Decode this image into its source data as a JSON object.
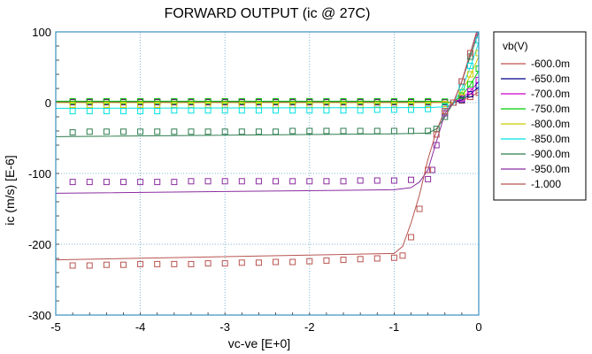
{
  "chart_data": {
    "type": "line",
    "title": "FORWARD OUTPUT (ic @ 27C)",
    "xlabel": "vc-ve  [E+0]",
    "ylabel": "ic (m/s)  [E-6]",
    "xlim": [
      -5,
      0
    ],
    "ylim": [
      -300,
      100
    ],
    "xticks": [
      "-5",
      "-4",
      "-3",
      "-2",
      "-1",
      "0"
    ],
    "yticks": [
      "-300",
      "-200",
      "-100",
      "0",
      "100"
    ],
    "grid": true,
    "legend_placement": "right",
    "legend_title": "vb(V)",
    "series": [
      {
        "name": "-600.0m",
        "color": "#c0504d",
        "x": [
          -5,
          -1.0,
          -0.6,
          -0.4,
          -0.3,
          -0.2,
          -0.1,
          0
        ],
        "y": [
          0.5,
          0.5,
          0.5,
          0.3,
          0.0,
          3,
          8,
          15
        ]
      },
      {
        "name": "-650.0m",
        "color": "#00008b",
        "x": [
          -5,
          -1.0,
          -0.6,
          -0.4,
          -0.3,
          -0.2,
          -0.1,
          0
        ],
        "y": [
          1,
          1,
          1,
          0.6,
          0.0,
          4,
          12,
          22
        ]
      },
      {
        "name": "-700.0m",
        "color": "#cc00cc",
        "x": [
          -5,
          -1.0,
          -0.6,
          -0.4,
          -0.3,
          -0.2,
          -0.1,
          0
        ],
        "y": [
          1.5,
          1.5,
          1.5,
          1,
          0.0,
          6,
          16,
          30
        ]
      },
      {
        "name": "-750.0m",
        "color": "#00cc00",
        "x": [
          -5,
          -1.0,
          -0.6,
          -0.4,
          -0.3,
          -0.2,
          -0.1,
          0
        ],
        "y": [
          2,
          2,
          2,
          1.5,
          0.0,
          10,
          25,
          45
        ]
      },
      {
        "name": "-800.0m",
        "color": "#cccc00",
        "x": [
          -5,
          -1.0,
          -0.6,
          -0.4,
          -0.3,
          -0.2,
          -0.1,
          0
        ],
        "y": [
          0,
          0,
          0,
          0,
          0.0,
          15,
          38,
          65
        ]
      },
      {
        "name": "-850.0m",
        "color": "#00e0e0",
        "x": [
          -5,
          -1.0,
          -0.6,
          -0.4,
          -0.3,
          -0.2,
          -0.1,
          0
        ],
        "y": [
          -8,
          -7,
          -7,
          -6,
          -2,
          20,
          50,
          85
        ]
      },
      {
        "name": "-900.0m",
        "color": "#2e7d4f",
        "x": [
          -5,
          -1.0,
          -0.6,
          -0.5,
          -0.4,
          -0.3,
          -0.2,
          -0.1,
          0
        ],
        "y": [
          -48,
          -44,
          -43,
          -37,
          -20,
          0,
          30,
          65,
          100
        ]
      },
      {
        "name": "-950.0m",
        "color": "#8b2da0",
        "x": [
          -5,
          -1.0,
          -0.8,
          -0.7,
          -0.6,
          -0.5,
          -0.4,
          -0.3,
          -0.2,
          -0.1,
          0
        ],
        "y": [
          -128,
          -123,
          -120,
          -112,
          -95,
          -55,
          -15,
          0,
          30,
          70,
          105
        ]
      },
      {
        "name": "-1.000",
        "color": "#b85450",
        "x": [
          -5,
          -1.0,
          -0.9,
          -0.8,
          -0.7,
          -0.6,
          -0.5,
          -0.4,
          -0.3,
          -0.2,
          -0.1,
          0
        ],
        "y": [
          -222,
          -213,
          -203,
          -170,
          -130,
          -80,
          -40,
          -10,
          0,
          30,
          70,
          110
        ]
      }
    ],
    "markers": [
      {
        "series": "-600.0m",
        "x": [
          -4.8,
          -4.6,
          -4.4,
          -4.2,
          -4,
          -3.8,
          -3.6,
          -3.4,
          -3.2,
          -3,
          -2.8,
          -2.6,
          -2.4,
          -2.2,
          -2,
          -1.8,
          -1.6,
          -1.4,
          -1.2,
          -1,
          -0.8,
          -0.6,
          -0.4,
          -0.2,
          -0.1,
          0
        ],
        "y": [
          0.5,
          0.5,
          0.5,
          0.5,
          0.5,
          0.5,
          0.5,
          0.5,
          0.5,
          0.5,
          0.5,
          0.5,
          0.5,
          0.5,
          0.5,
          0.5,
          0.5,
          0.5,
          0.5,
          0.5,
          0.5,
          0.5,
          0.3,
          3,
          8,
          14
        ]
      },
      {
        "series": "-650.0m",
        "x": [
          -4.8,
          -4.6,
          -4.4,
          -4.2,
          -4,
          -3.8,
          -3.6,
          -3.4,
          -3.2,
          -3,
          -2.8,
          -2.6,
          -2.4,
          -2.2,
          -2,
          -1.8,
          -1.6,
          -1.4,
          -1.2,
          -1,
          -0.8,
          -0.6,
          -0.4,
          -0.2,
          -0.1,
          0
        ],
        "y": [
          1,
          1,
          1,
          1,
          1,
          1,
          1,
          1,
          1,
          1,
          1,
          1,
          1,
          1,
          1,
          1,
          1,
          1,
          1,
          1,
          1,
          1,
          0.6,
          4,
          12,
          24
        ]
      },
      {
        "series": "-700.0m",
        "x": [
          -4.8,
          -4.6,
          -4.4,
          -4.2,
          -4,
          -3.8,
          -3.6,
          -3.4,
          -3.2,
          -3,
          -2.8,
          -2.6,
          -2.4,
          -2.2,
          -2,
          -1.8,
          -1.6,
          -1.4,
          -1.2,
          -1,
          -0.8,
          -0.6,
          -0.4,
          -0.2,
          -0.1,
          0
        ],
        "y": [
          1.5,
          1.5,
          1.5,
          1.5,
          1.5,
          1.5,
          1.5,
          1.5,
          1.5,
          1.5,
          1.5,
          1.5,
          1.5,
          1.5,
          1.5,
          1.5,
          1.5,
          1.5,
          1.5,
          1.5,
          1.5,
          1.5,
          1,
          6,
          16,
          32
        ]
      },
      {
        "series": "-750.0m",
        "x": [
          -4.8,
          -4.6,
          -4.4,
          -4.2,
          -4,
          -3.8,
          -3.6,
          -3.4,
          -3.2,
          -3,
          -2.8,
          -2.6,
          -2.4,
          -2.2,
          -2,
          -1.8,
          -1.6,
          -1.4,
          -1.2,
          -1,
          -0.8,
          -0.6,
          -0.4,
          -0.2,
          -0.1,
          0
        ],
        "y": [
          2,
          2,
          2,
          2,
          2,
          2,
          2,
          2,
          2,
          2,
          2,
          2,
          2,
          2,
          2,
          2,
          2,
          2,
          2,
          2,
          2,
          2,
          1.5,
          10,
          26,
          48
        ]
      },
      {
        "series": "-800.0m",
        "x": [
          -4.8,
          -4.6,
          -4.4,
          -4.2,
          -4,
          -3.8,
          -3.6,
          -3.4,
          -3.2,
          -3,
          -2.8,
          -2.6,
          -2.4,
          -2.2,
          -2,
          -1.8,
          -1.6,
          -1.4,
          -1.2,
          -1,
          -0.8,
          -0.6,
          -0.4,
          -0.2,
          -0.1,
          0
        ],
        "y": [
          -3,
          -3,
          -3,
          -3,
          -3,
          -3,
          -3,
          -3,
          -3,
          -3,
          -3,
          -3,
          -3,
          -3,
          -3,
          -3,
          -3,
          -3,
          -3,
          -3,
          -3,
          -3,
          -2,
          15,
          40,
          70
        ]
      },
      {
        "series": "-850.0m",
        "x": [
          -4.8,
          -4.6,
          -4.4,
          -4.2,
          -4,
          -3.8,
          -3.6,
          -3.4,
          -3.2,
          -3,
          -2.8,
          -2.6,
          -2.4,
          -2.2,
          -2,
          -1.8,
          -1.6,
          -1.4,
          -1.2,
          -1,
          -0.8,
          -0.6,
          -0.4,
          -0.2,
          -0.1,
          0
        ],
        "y": [
          -12,
          -12,
          -12,
          -12,
          -12,
          -12,
          -11,
          -11,
          -11,
          -11,
          -11,
          -11,
          -11,
          -11,
          -11,
          -11,
          -11,
          -11,
          -10,
          -10,
          -10,
          -9,
          -5,
          22,
          52,
          88
        ]
      },
      {
        "series": "-900.0m",
        "x": [
          -4.8,
          -4.6,
          -4.4,
          -4.2,
          -4,
          -3.8,
          -3.6,
          -3.4,
          -3.2,
          -3,
          -2.8,
          -2.6,
          -2.4,
          -2.2,
          -2,
          -1.8,
          -1.6,
          -1.4,
          -1.2,
          -1,
          -0.8,
          -0.6,
          -0.5,
          -0.4,
          -0.3,
          -0.2,
          -0.1
        ],
        "y": [
          -42,
          -41,
          -41,
          -41,
          -41,
          -41,
          -41,
          -41,
          -41,
          -41,
          -41,
          -41,
          -41,
          -40,
          -40,
          -40,
          -40,
          -40,
          -40,
          -40,
          -40,
          -40,
          -37,
          -20,
          0,
          30,
          65
        ]
      },
      {
        "series": "-950.0m",
        "x": [
          -4.8,
          -4.6,
          -4.4,
          -4.2,
          -4,
          -3.8,
          -3.6,
          -3.4,
          -3.2,
          -3,
          -2.8,
          -2.6,
          -2.4,
          -2.2,
          -2,
          -1.8,
          -1.6,
          -1.4,
          -1.2,
          -1,
          -0.8,
          -0.6,
          -0.55,
          -0.5,
          -0.4,
          -0.3,
          -0.2,
          -0.1
        ],
        "y": [
          -112,
          -112,
          -112,
          -112,
          -112,
          -112,
          -112,
          -111,
          -111,
          -111,
          -111,
          -111,
          -111,
          -111,
          -111,
          -111,
          -111,
          -110,
          -110,
          -110,
          -109,
          -108,
          -95,
          -60,
          -15,
          0,
          30,
          70
        ]
      },
      {
        "series": "-1.000",
        "x": [
          -4.8,
          -4.6,
          -4.4,
          -4.2,
          -4,
          -3.8,
          -3.6,
          -3.4,
          -3.2,
          -3,
          -2.8,
          -2.6,
          -2.4,
          -2.2,
          -2,
          -1.8,
          -1.6,
          -1.4,
          -1.2,
          -1,
          -0.9,
          -0.8,
          -0.7,
          -0.6,
          -0.5,
          -0.4,
          -0.3,
          -0.2,
          -0.1
        ],
        "y": [
          -230,
          -230,
          -229,
          -229,
          -228,
          -228,
          -228,
          -228,
          -227,
          -227,
          -226,
          -226,
          -225,
          -225,
          -224,
          -223,
          -222,
          -221,
          -220,
          -219,
          -216,
          -190,
          -150,
          -95,
          -45,
          -12,
          0,
          30,
          70
        ]
      }
    ]
  }
}
